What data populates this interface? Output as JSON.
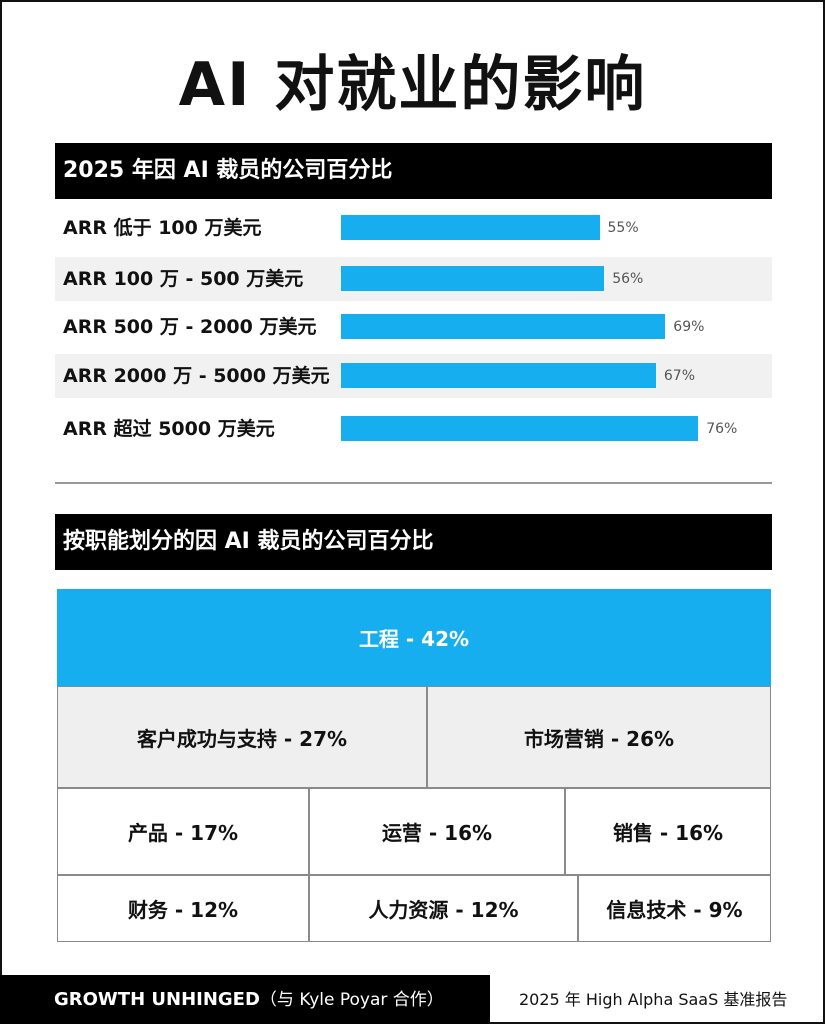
{
  "title": "AI 对就业的影响",
  "chart_data": [
    {
      "type": "bar",
      "title": "2025 年因 AI 裁员的公司百分比",
      "categories": [
        "ARR 低于 100 万美元",
        "ARR 100 万 - 500 万美元",
        "ARR 500 万 - 2000 万美元",
        "ARR 2000 万 - 5000 万美元",
        "ARR 超过 5000 万美元"
      ],
      "values": [
        55,
        56,
        69,
        67,
        76
      ],
      "value_labels": [
        "55%",
        "56%",
        "69%",
        "67%",
        "76%"
      ],
      "orientation": "horizontal",
      "bar_color": "#17aeef"
    },
    {
      "type": "table",
      "title": "按职能划分的因 AI 裁员的公司百分比",
      "categories": [
        "工程",
        "客户成功与支持",
        "市场营销",
        "产品",
        "运营",
        "销售",
        "财务",
        "人力资源",
        "信息技术"
      ],
      "values": [
        42,
        27,
        26,
        17,
        16,
        16,
        12,
        12,
        9
      ],
      "cells": [
        "工程 - 42%",
        "客户成功与支持 - 27%",
        "市场营销 - 26%",
        "产品 - 17%",
        "运营 - 16%",
        "销售 - 16%",
        "财务 - 12%",
        "人力资源 - 12%",
        "信息技术 - 9%"
      ],
      "highlight_color": "#17aeef"
    }
  ],
  "footer": {
    "brand": "GROWTH UNHINGED",
    "brand_sub": "（与 Kyle Poyar 合作）",
    "source": "2025 年 High Alpha SaaS 基准报告"
  }
}
